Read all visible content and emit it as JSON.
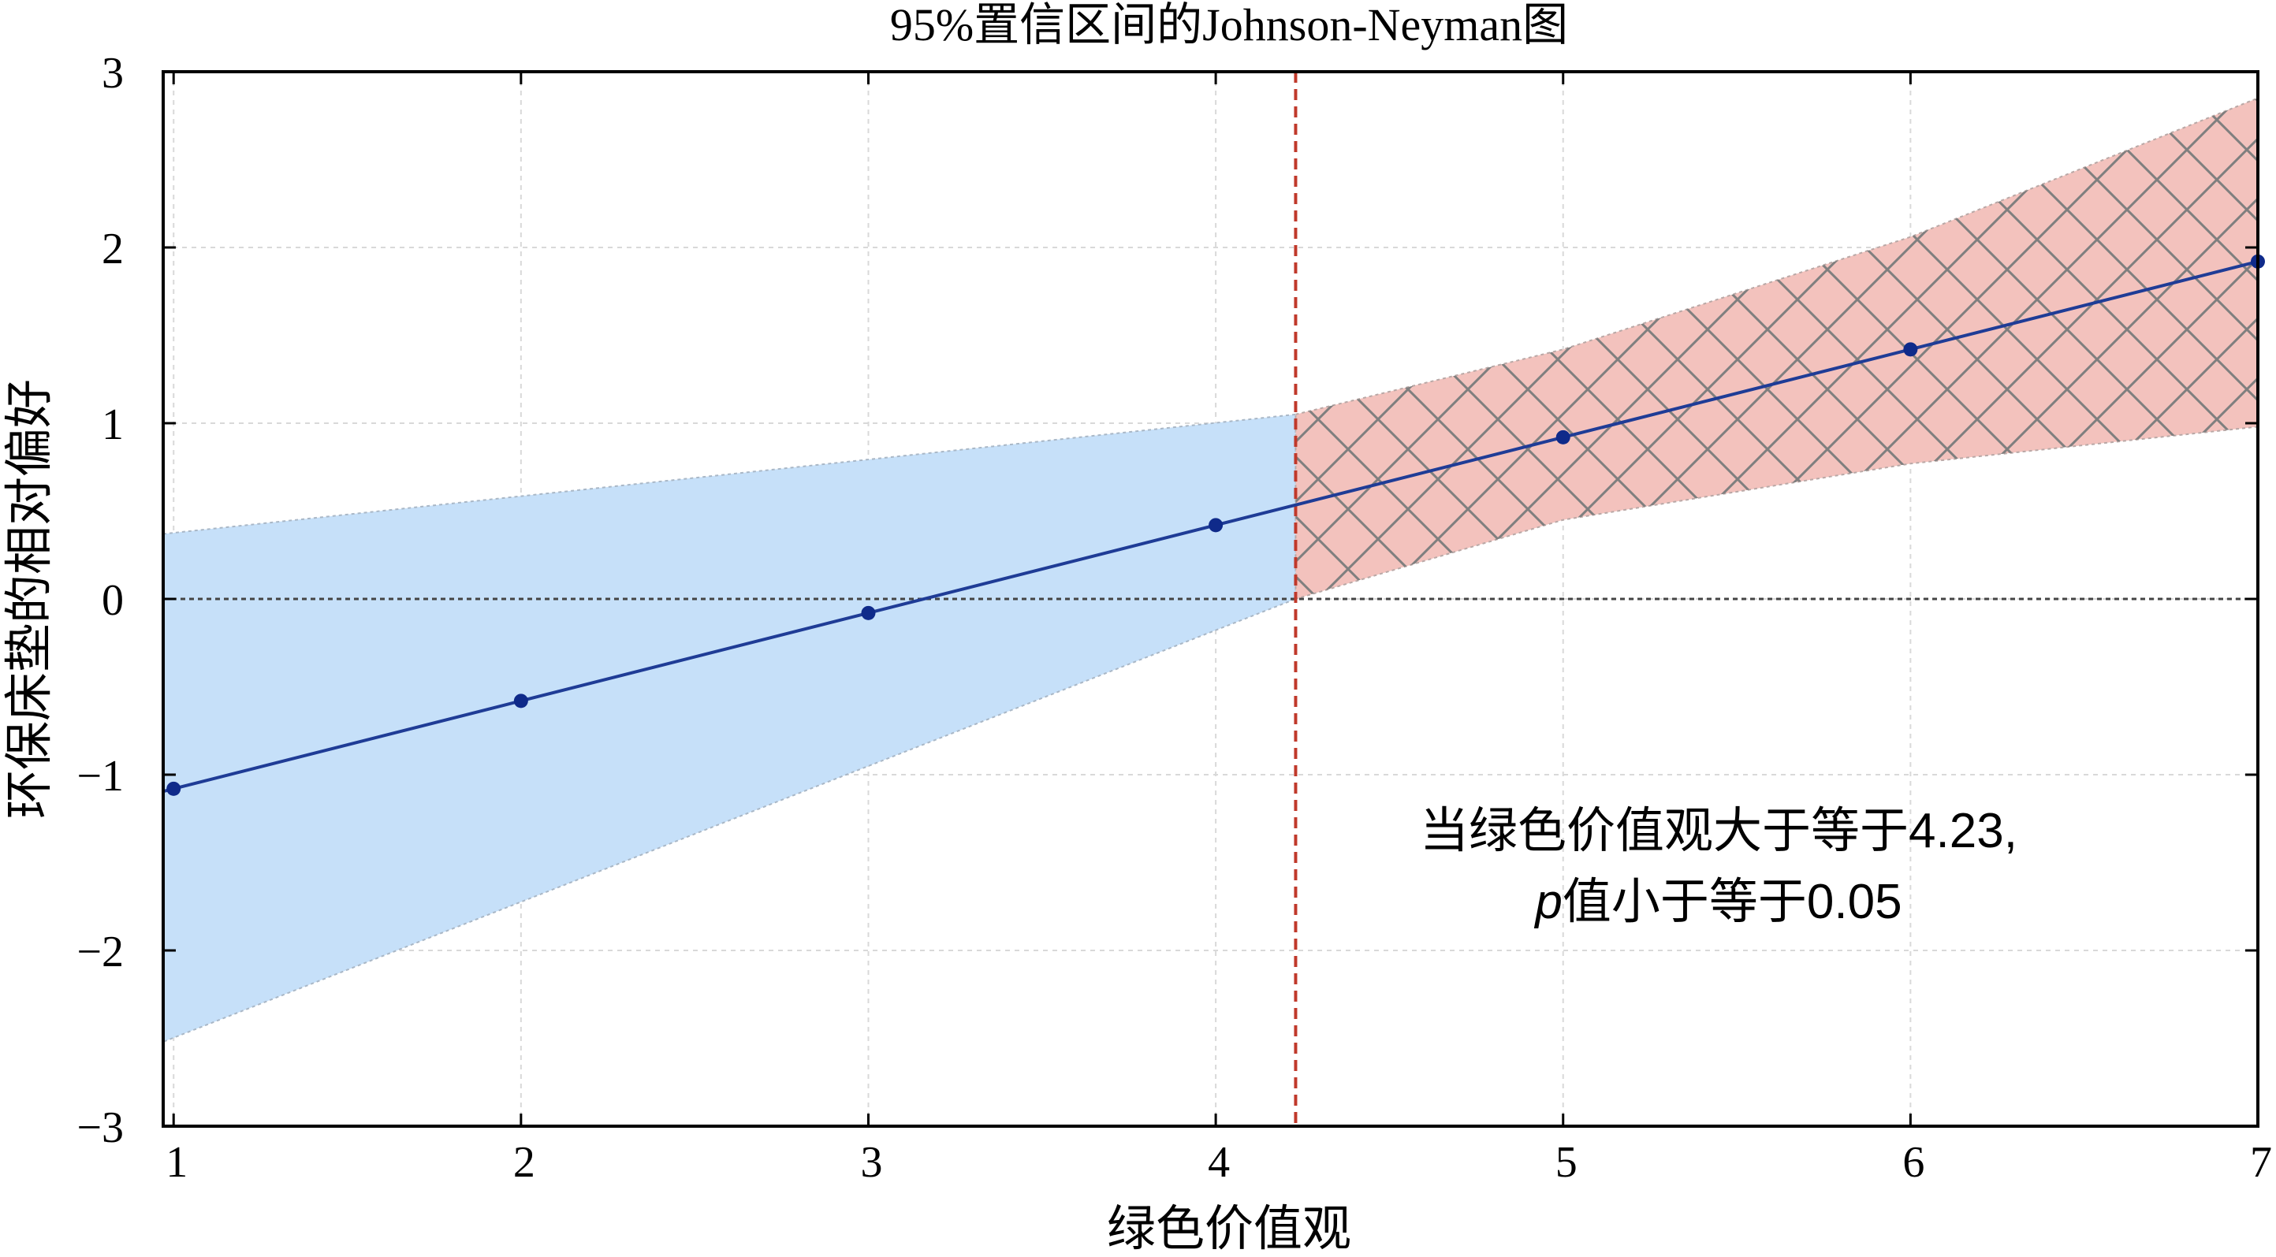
{
  "chart_data": {
    "type": "line",
    "title": "95%置信区间的Johnson-Neyman图",
    "xlabel": "绿色价值观",
    "ylabel": "环保床垫的相对偏好",
    "xlim": [
      0.97,
      7.0
    ],
    "ylim": [
      -3,
      3
    ],
    "xticks": [
      1,
      2,
      3,
      4,
      5,
      6,
      7
    ],
    "yticks": [
      3,
      2,
      1,
      0,
      -1,
      -2,
      -3
    ],
    "ytick_labels": [
      "3",
      "2",
      "1",
      "0",
      "−1",
      "−2",
      "−3"
    ],
    "grid": true,
    "x": [
      1,
      2,
      3,
      4,
      5,
      6,
      7
    ],
    "effect": [
      -1.08,
      -0.58,
      -0.08,
      0.42,
      0.92,
      1.42,
      1.92
    ],
    "line_x_start": 0.97,
    "ci_lower_at_x": {
      "x": [
        0.97,
        4.23,
        5,
        6,
        7
      ],
      "y": [
        -2.52,
        0.0,
        0.45,
        0.77,
        0.98
      ]
    },
    "ci_upper_at_x": {
      "x": [
        0.97,
        4.23,
        5,
        6,
        7
      ],
      "y": [
        0.37,
        1.05,
        1.42,
        2.06,
        2.85
      ]
    },
    "threshold_x": 4.23,
    "zero_line_y": 0,
    "regions": [
      {
        "name": "non-significant",
        "color": "#c6e0f9",
        "from": 0.97,
        "to": 4.23
      },
      {
        "name": "significant",
        "color": "#f3c2bd",
        "hatch": "cross",
        "from": 4.23,
        "to": 7
      }
    ],
    "annotation": {
      "line1": "当绿色价值观大于等于4.23,",
      "line2_italic": "p",
      "line2_rest": "值小于等于0.05",
      "x": 5.52,
      "y": -1.45
    },
    "colors": {
      "line": "#1f3c96",
      "marker": "#0f2a8a",
      "threshold": "#c0392b",
      "zero": "#444444",
      "axis": "#000000",
      "grid": "#d9d9d9",
      "hatch": "#7f7f7f"
    }
  }
}
